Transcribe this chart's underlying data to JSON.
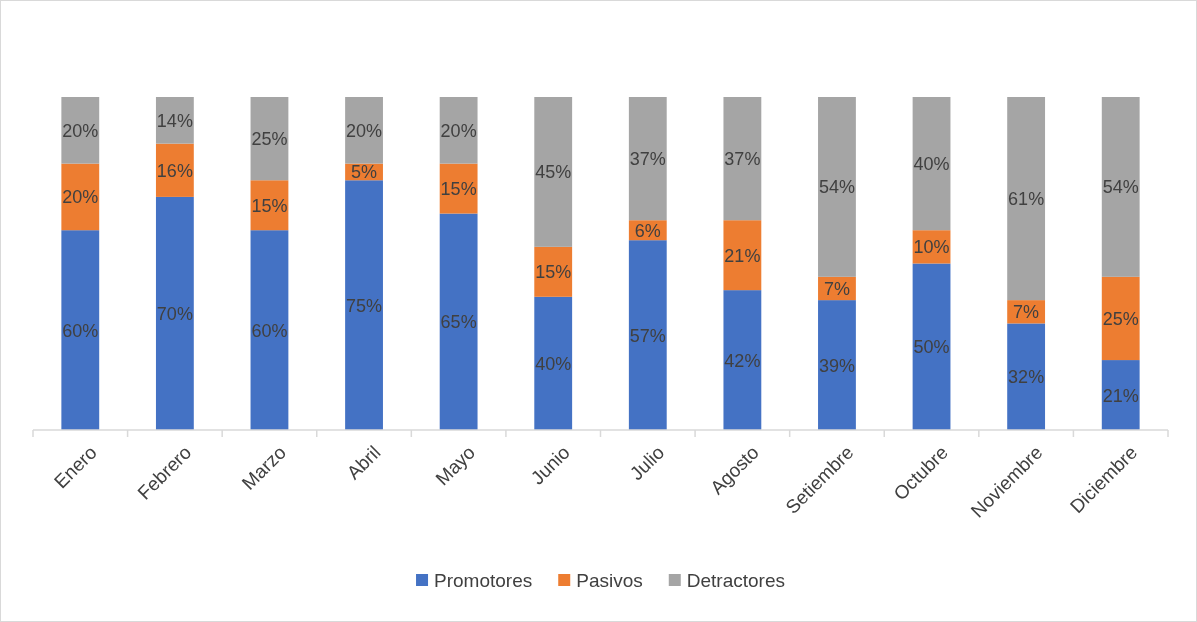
{
  "chart_data": {
    "type": "bar",
    "stacked": true,
    "categories": [
      "Enero",
      "Febrero",
      "Marzo",
      "Abril",
      "Mayo",
      "Junio",
      "Julio",
      "Agosto",
      "Setiembre",
      "Octubre",
      "Noviembre",
      "Diciembre"
    ],
    "ylim": [
      0,
      100
    ],
    "tick_labels": "x",
    "legend": "bottom",
    "series": [
      {
        "name": "Promotores",
        "color": "#4472c4",
        "values": [
          60,
          70,
          60,
          75,
          65,
          40,
          57,
          42,
          39,
          50,
          32,
          21
        ],
        "value_labels": [
          "60%",
          "70%",
          "60%",
          "75%",
          "65%",
          "40%",
          "57%",
          "42%",
          "39%",
          "50%",
          "32%",
          "21%"
        ]
      },
      {
        "name": "Pasivos",
        "color": "#ed7d31",
        "values": [
          20,
          16,
          15,
          5,
          15,
          15,
          6,
          21,
          7,
          10,
          7,
          25
        ],
        "value_labels": [
          "20%",
          "16%",
          "15%",
          "5%",
          "15%",
          "15%",
          "6%",
          "21%",
          "7%",
          "10%",
          "7%",
          "25%"
        ]
      },
      {
        "name": "Detractores",
        "color": "#a5a5a5",
        "values": [
          20,
          14,
          25,
          20,
          20,
          45,
          37,
          37,
          54,
          40,
          61,
          54
        ],
        "value_labels": [
          "20%",
          "14%",
          "25%",
          "20%",
          "20%",
          "45%",
          "37%",
          "37%",
          "54%",
          "40%",
          "61%",
          "54%"
        ]
      }
    ]
  }
}
